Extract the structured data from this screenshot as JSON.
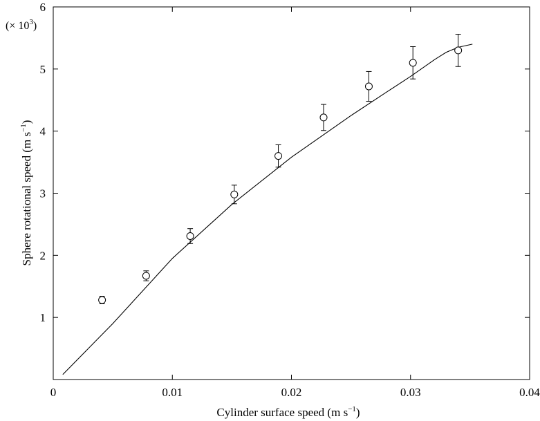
{
  "chart_data": {
    "type": "scatter",
    "xlabel": "Cylinder surface speed (m s",
    "xlabel_exp": "−1",
    "xlabel_close": ")",
    "ylabel": "Sphere rotational speed (m s",
    "ylabel_exp": "−1",
    "ylabel_close": ")",
    "y_multiplier": {
      "prefix": "(× 10",
      "exp": "3",
      "suffix": ")"
    },
    "xlim": [
      0,
      0.04
    ],
    "ylim": [
      0,
      6
    ],
    "x_ticks": [
      0,
      0.01,
      0.02,
      0.03,
      0.04
    ],
    "x_tick_labels": [
      "0",
      "0.01",
      "0.02",
      "0.03",
      "0.04"
    ],
    "y_ticks": [
      1,
      2,
      3,
      4,
      5,
      6
    ],
    "y_tick_labels": [
      "1",
      "2",
      "3",
      "4",
      "5",
      "6"
    ],
    "grid": false,
    "series": [
      {
        "kind": "points-with-errorbars",
        "marker": "circle",
        "points": [
          {
            "x": 0.0041,
            "y": 1.28,
            "err": 0.06
          },
          {
            "x": 0.0078,
            "y": 1.67,
            "err": 0.08
          },
          {
            "x": 0.0115,
            "y": 2.31,
            "err": 0.12
          },
          {
            "x": 0.0152,
            "y": 2.98,
            "err": 0.15
          },
          {
            "x": 0.0189,
            "y": 3.6,
            "err": 0.18
          },
          {
            "x": 0.0227,
            "y": 4.22,
            "err": 0.21
          },
          {
            "x": 0.0265,
            "y": 4.72,
            "err": 0.24
          },
          {
            "x": 0.0302,
            "y": 5.1,
            "err": 0.26
          },
          {
            "x": 0.034,
            "y": 5.3,
            "err": 0.26
          }
        ]
      },
      {
        "kind": "line",
        "x": [
          0.0008,
          0.005,
          0.01,
          0.015,
          0.02,
          0.025,
          0.028,
          0.03,
          0.032,
          0.033,
          0.034,
          0.0352
        ],
        "y": [
          0.08,
          0.9,
          1.95,
          2.82,
          3.58,
          4.25,
          4.63,
          4.88,
          5.15,
          5.27,
          5.35,
          5.4
        ]
      }
    ]
  }
}
